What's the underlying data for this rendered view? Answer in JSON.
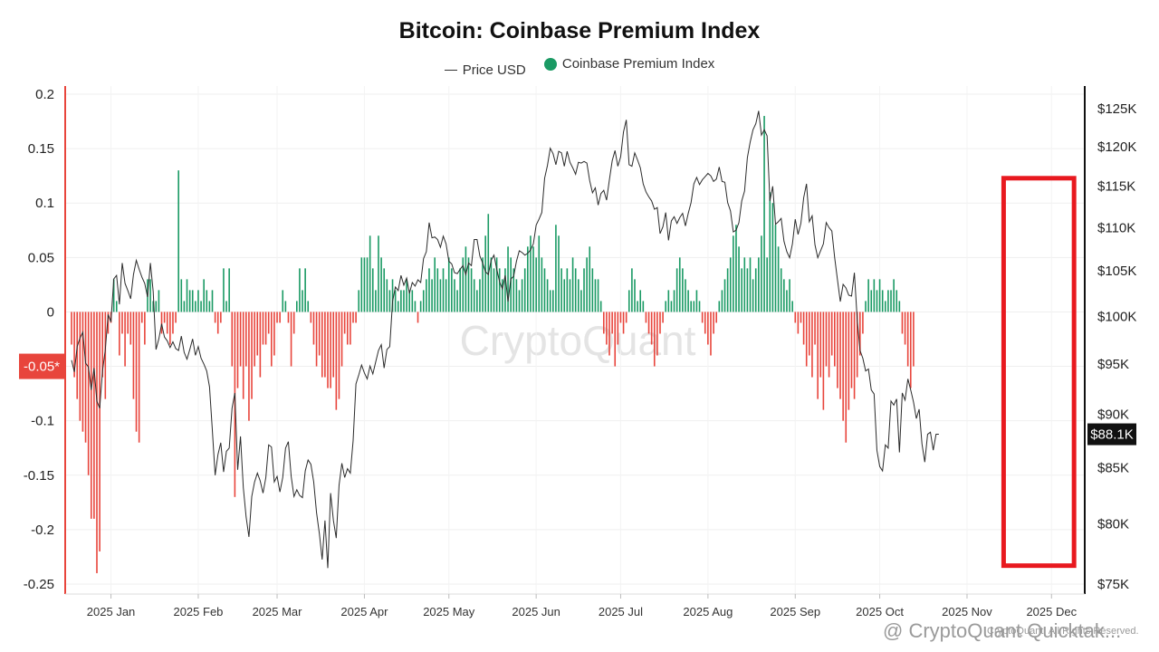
{
  "chart_data": {
    "type": "bar",
    "title": "Bitcoin: Coinbase Premium Index",
    "legend": [
      {
        "name": "Price USD",
        "kind": "line",
        "color": "#333333"
      },
      {
        "name": "Coinbase Premium Index",
        "kind": "dot",
        "color": "#1a9a64"
      }
    ],
    "left_axis": {
      "ylim": [
        -0.25,
        0.2
      ],
      "ticks": [
        0.2,
        0.15,
        0.1,
        0.05,
        0,
        -0.05,
        -0.1,
        -0.15,
        -0.2,
        -0.25
      ],
      "tick_labels": [
        "0.2",
        "0.15",
        "0.1",
        "0.05",
        "0",
        "-0.05*",
        "-0.1",
        "-0.15",
        "-0.2",
        "-0.25"
      ],
      "highlight_index": 5,
      "highlight_color": "#e8453c"
    },
    "right_axis": {
      "scale": "log",
      "ylim": [
        75000,
        125000
      ],
      "ticks": [
        125000,
        120000,
        115000,
        110000,
        105000,
        100000,
        95000,
        90000,
        85000,
        80000,
        75000
      ],
      "tick_labels": [
        "$125K",
        "$120K",
        "$115K",
        "$110K",
        "$105K",
        "$100K",
        "$95K",
        "$90K",
        "$85K",
        "$80K",
        "$75K"
      ],
      "current_label": "$88.1K",
      "current_value": 88100
    },
    "x_axis": {
      "tick_labels": [
        "2025 Jan",
        "2025 Feb",
        "2025 Mar",
        "2025 Apr",
        "2025 May",
        "2025 Jun",
        "2025 Jul",
        "2025 Aug",
        "2025 Sep",
        "2025 Oct",
        "2025 Nov",
        "2025 Dec"
      ],
      "tick_day_index": [
        14,
        45,
        73,
        104,
        134,
        165,
        195,
        226,
        257,
        287,
        318,
        348
      ],
      "start": "2024-12-31",
      "end": "2025-12-23"
    },
    "grid": true,
    "positive_color": "#1a9a64",
    "negative_color": "#e8453c",
    "premium_index": [
      -0.03,
      -0.06,
      -0.08,
      -0.1,
      -0.11,
      -0.12,
      -0.15,
      -0.19,
      -0.19,
      -0.24,
      -0.22,
      -0.06,
      -0.08,
      -0.02,
      -0.01,
      0.03,
      0.01,
      -0.04,
      -0.02,
      -0.05,
      -0.02,
      -0.03,
      -0.08,
      -0.11,
      -0.12,
      -0.01,
      -0.03,
      0.03,
      0.03,
      0.01,
      0.01,
      0.02,
      -0.02,
      -0.01,
      -0.02,
      -0.03,
      -0.02,
      -0.01,
      0.13,
      0.03,
      0.01,
      0.03,
      0.02,
      0.02,
      0.01,
      0.02,
      0.01,
      0.03,
      0.02,
      0.01,
      0.02,
      -0.01,
      -0.02,
      -0.01,
      0.04,
      0.01,
      0.04,
      -0.05,
      -0.17,
      -0.07,
      -0.05,
      -0.08,
      -0.05,
      -0.1,
      -0.08,
      -0.05,
      -0.04,
      -0.06,
      -0.03,
      -0.03,
      -0.02,
      -0.05,
      -0.04,
      -0.01,
      -0.01,
      0.02,
      0.01,
      -0.01,
      -0.05,
      -0.02,
      0.01,
      0.04,
      0.02,
      0.04,
      0.01,
      -0.01,
      -0.03,
      -0.05,
      -0.04,
      -0.06,
      -0.06,
      -0.07,
      -0.07,
      -0.06,
      -0.09,
      -0.08,
      -0.05,
      -0.02,
      -0.03,
      -0.03,
      -0.01,
      -0.01,
      0.02,
      0.05,
      0.05,
      0.05,
      0.07,
      0.04,
      0.02,
      0.07,
      0.05,
      0.04,
      0.03,
      0.02,
      0.03,
      0.02,
      0.01,
      0.02,
      0.02,
      0.03,
      0.02,
      0.02,
      0.01,
      -0.01,
      0.01,
      0.02,
      0.03,
      0.04,
      0.03,
      0.05,
      0.04,
      0.03,
      0.04,
      0.03,
      0.05,
      0.04,
      0.03,
      0.02,
      0.04,
      0.05,
      0.06,
      0.05,
      0.04,
      0.03,
      0.02,
      0.03,
      0.05,
      0.07,
      0.09,
      0.05,
      0.04,
      0.05,
      0.04,
      0.03,
      0.04,
      0.06,
      0.05,
      0.04,
      0.03,
      0.02,
      0.03,
      0.04,
      0.06,
      0.07,
      0.06,
      0.05,
      0.07,
      0.05,
      0.04,
      0.03,
      0.02,
      0.02,
      0.08,
      0.07,
      0.04,
      0.03,
      0.04,
      0.03,
      0.05,
      0.04,
      0.03,
      0.02,
      0.04,
      0.05,
      0.06,
      0.04,
      0.03,
      0.03,
      0.01,
      -0.02,
      -0.03,
      -0.04,
      -0.02,
      -0.05,
      -0.03,
      -0.01,
      -0.02,
      -0.01,
      0.02,
      0.04,
      0.03,
      0.01,
      0.02,
      0.01,
      -0.01,
      -0.02,
      -0.03,
      -0.05,
      -0.04,
      -0.02,
      -0.01,
      0.01,
      0.02,
      0.01,
      0.02,
      0.04,
      0.05,
      0.04,
      0.03,
      0.02,
      0.01,
      0.01,
      0.02,
      0.01,
      -0.01,
      -0.02,
      -0.03,
      -0.04,
      -0.02,
      -0.01,
      0.01,
      0.02,
      0.03,
      0.04,
      0.05,
      0.07,
      0.08,
      0.06,
      0.04,
      0.05,
      0.04,
      0.05,
      0.03,
      0.04,
      0.05,
      0.07,
      0.18,
      0.05,
      0.11,
      0.1,
      0.08,
      0.06,
      0.04,
      0.03,
      0.02,
      0.03,
      0.01,
      -0.01,
      -0.02,
      -0.01,
      -0.03,
      -0.05,
      -0.04,
      -0.06,
      -0.03,
      -0.08,
      -0.06,
      -0.09,
      -0.05,
      -0.06,
      -0.04,
      -0.05,
      -0.07,
      -0.08,
      -0.1,
      -0.12,
      -0.09,
      -0.07,
      -0.08,
      -0.06,
      -0.04,
      -0.02,
      0.01,
      0.03,
      0.02,
      0.03,
      0.02,
      0.03,
      0.02,
      0.01,
      0.02,
      0.02,
      0.03,
      0.02,
      0.01,
      -0.02,
      -0.03,
      -0.05,
      -0.07,
      -0.05
    ],
    "price_usd": [
      95400,
      94200,
      96800,
      97700,
      98300,
      95100,
      94700,
      92400,
      94600,
      91300,
      90600,
      94300,
      96500,
      100200,
      99400,
      104100,
      104500,
      101300,
      105900,
      103600,
      102800,
      101900,
      104600,
      106200,
      105200,
      104300,
      103600,
      102100,
      105900,
      102700,
      96500,
      97600,
      99200,
      97800,
      97400,
      96700,
      97300,
      96600,
      96400,
      97900,
      96200,
      95500,
      96500,
      97600,
      95900,
      96800,
      95600,
      95000,
      94300,
      92700,
      88500,
      84300,
      86200,
      87300,
      84600,
      86500,
      86800,
      90600,
      92100,
      84800,
      87900,
      83200,
      80600,
      78900,
      82400,
      83700,
      84500,
      83800,
      82700,
      84100,
      87100,
      86900,
      83700,
      84200,
      82800,
      84100,
      86800,
      87400,
      84200,
      82400,
      83000,
      82500,
      82300,
      84700,
      85700,
      85300,
      83700,
      81000,
      79200,
      77000,
      80300,
      76300,
      82700,
      80300,
      78800,
      83400,
      85400,
      84100,
      84900,
      84500,
      87500,
      93000,
      93900,
      94900,
      94100,
      93500,
      94800,
      94000,
      95200,
      96400,
      97000,
      94600,
      96500,
      96800,
      101600,
      103200,
      102800,
      104500,
      103400,
      104200,
      102500,
      103700,
      103300,
      104000,
      103700,
      106400,
      107200,
      110600,
      108800,
      108900,
      108600,
      107700,
      109000,
      108100,
      106100,
      105800,
      104800,
      104700,
      105200,
      105600,
      104600,
      105900,
      105600,
      108600,
      108600,
      106700,
      105900,
      104900,
      104600,
      106200,
      106800,
      105200,
      103800,
      103000,
      104500,
      101600,
      104100,
      104400,
      106100,
      107300,
      107100,
      106800,
      107000,
      107400,
      108100,
      110300,
      111000,
      111800,
      116000,
      117600,
      119800,
      119100,
      117700,
      119400,
      119200,
      117500,
      119400,
      118000,
      117300,
      116500,
      118000,
      117900,
      118100,
      117900,
      115700,
      114200,
      114800,
      112700,
      114100,
      114500,
      113300,
      115800,
      118200,
      119500,
      117500,
      118700,
      121900,
      123500,
      117700,
      117500,
      119200,
      118300,
      117300,
      115300,
      114300,
      113700,
      113200,
      112200,
      112400,
      109300,
      110100,
      111800,
      108500,
      110800,
      111300,
      110500,
      111200,
      111700,
      110200,
      111700,
      113000,
      115300,
      116100,
      115200,
      115800,
      116200,
      116600,
      116300,
      115600,
      115900,
      117400,
      115600,
      115500,
      113000,
      112000,
      109500,
      109700,
      110600,
      113200,
      114400,
      118600,
      120600,
      122200,
      123000,
      124700,
      121500,
      122200,
      121400,
      113200,
      115000,
      110400,
      110700,
      111100,
      108400,
      107200,
      106500,
      108100,
      111000,
      109200,
      110500,
      113600,
      115300,
      110700,
      111400,
      108000,
      106500,
      107300,
      108100,
      110600,
      110000,
      109600,
      106500,
      104000,
      101600,
      103500,
      103100,
      102300,
      102200,
      104800,
      99700,
      96400,
      95600,
      94300,
      94500,
      92400,
      92000,
      86600,
      85100,
      84700,
      87100,
      86800,
      91300,
      90900,
      91500,
      86400,
      92100,
      91400,
      93500,
      92400,
      91200,
      89600,
      90500,
      87200,
      85500,
      88100,
      88300,
      86600,
      88100,
      88100
    ],
    "highlight_box": {
      "start_day_index": 331,
      "end_day_index": 356,
      "top_value": 116000,
      "bottom_value": 76500,
      "color": "#e8191f"
    }
  },
  "watermark": "CryptoQuant",
  "footer": {
    "handle": "@ CryptoQuant Quicktak...",
    "credit": "CryptoQuant. All Rights Reserved."
  }
}
